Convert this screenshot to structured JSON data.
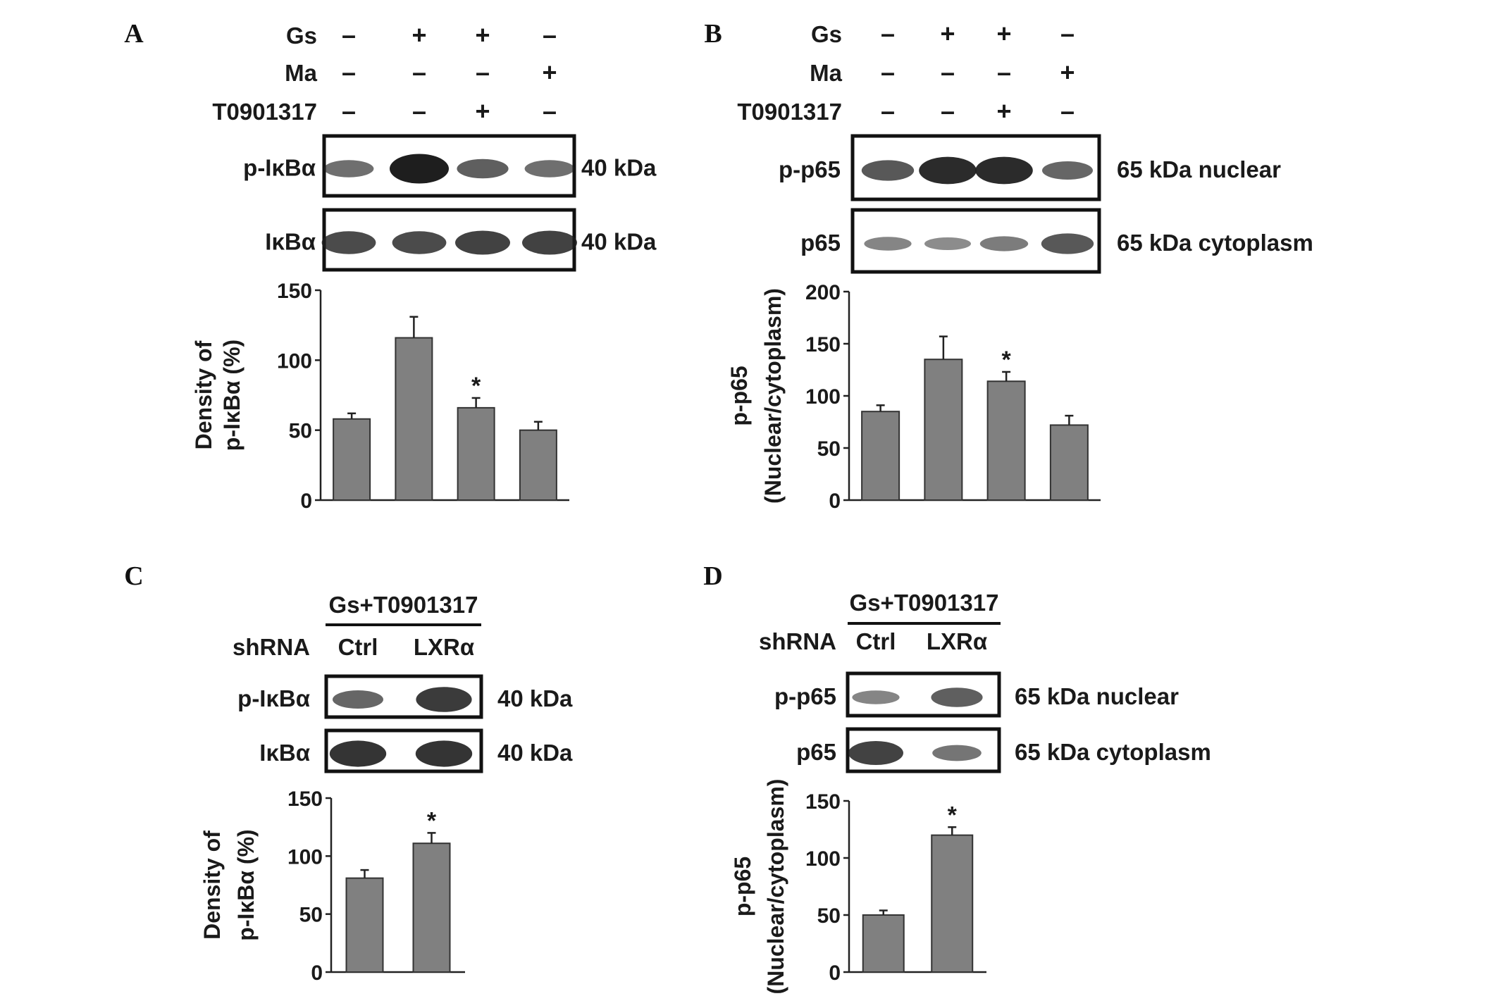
{
  "panels": [
    {
      "letter": "A",
      "treatments": [
        {
          "name": "Gs",
          "signs": [
            "-",
            "+",
            "+",
            "-"
          ]
        },
        {
          "name": "Ma",
          "signs": [
            "-",
            "-",
            "-",
            "+"
          ]
        },
        {
          "name": "T0901317",
          "signs": [
            "-",
            "-",
            "+",
            "-"
          ]
        }
      ],
      "blots": [
        {
          "label": "p-IκBα",
          "size": "40 kDa",
          "bands": [
            0.45,
            1.0,
            0.55,
            0.45
          ]
        },
        {
          "label": "IκBα",
          "size": "40 kDa",
          "bands": [
            0.7,
            0.7,
            0.75,
            0.75
          ]
        }
      ]
    },
    {
      "letter": "B",
      "treatments": [
        {
          "name": "Gs",
          "signs": [
            "-",
            "+",
            "+",
            "-"
          ]
        },
        {
          "name": "Ma",
          "signs": [
            "-",
            "-",
            "-",
            "+"
          ]
        },
        {
          "name": "T0901317",
          "signs": [
            "-",
            "-",
            "+",
            "-"
          ]
        }
      ],
      "blots": [
        {
          "label": "p-p65",
          "size": "65 kDa nuclear",
          "bands": [
            0.6,
            0.9,
            0.9,
            0.5
          ]
        },
        {
          "label": "p65",
          "size": "65 kDa cytoplasm",
          "bands": [
            0.3,
            0.25,
            0.35,
            0.6
          ]
        }
      ]
    },
    {
      "letter": "C",
      "condition": "Gs+T0901317",
      "shrna_label": "shRNA",
      "groups": [
        "Ctrl",
        "LXRα"
      ],
      "blots": [
        {
          "label": "p-IκBα",
          "size": "40 kDa",
          "bands": [
            0.5,
            0.8
          ]
        },
        {
          "label": "IκBα",
          "size": "40 kDa",
          "bands": [
            0.85,
            0.85
          ]
        }
      ]
    },
    {
      "letter": "D",
      "condition": "Gs+T0901317",
      "shrna_label": "shRNA",
      "groups": [
        "Ctrl",
        "LXRα"
      ],
      "blots": [
        {
          "label": "p-p65",
          "size": "65 kDa nuclear",
          "bands": [
            0.3,
            0.55
          ]
        },
        {
          "label": "p65",
          "size": "65 kDa cytoplasm",
          "bands": [
            0.75,
            0.4
          ]
        }
      ]
    }
  ],
  "chart_data": [
    {
      "type": "bar",
      "panel": "A",
      "ylabel": [
        "Density of",
        "p-IκBα (%)"
      ],
      "ylim": [
        0,
        150
      ],
      "yticks": [
        0,
        50,
        100,
        150
      ],
      "values": [
        58,
        116,
        66,
        50
      ],
      "errors": [
        4,
        15,
        7,
        6
      ],
      "significance": [
        "",
        "",
        "*",
        ""
      ]
    },
    {
      "type": "bar",
      "panel": "B",
      "ylabel": [
        "p-p65",
        "(Nuclear/cytoplasm)"
      ],
      "ylim": [
        0,
        200
      ],
      "yticks": [
        0,
        50,
        100,
        150,
        200
      ],
      "values": [
        85,
        135,
        114,
        72
      ],
      "errors": [
        6,
        22,
        9,
        9
      ],
      "significance": [
        "",
        "",
        "*",
        ""
      ]
    },
    {
      "type": "bar",
      "panel": "C",
      "ylabel": [
        "Density of",
        "p-IκBα (%)"
      ],
      "ylim": [
        0,
        150
      ],
      "yticks": [
        0,
        50,
        100,
        150
      ],
      "categories": [
        "Ctrl",
        "LXRα"
      ],
      "values": [
        81,
        111
      ],
      "errors": [
        7,
        9
      ],
      "significance": [
        "",
        "*"
      ]
    },
    {
      "type": "bar",
      "panel": "D",
      "ylabel": [
        "p-p65",
        "(Nuclear/cytoplasm)"
      ],
      "ylim": [
        0,
        150
      ],
      "yticks": [
        0,
        50,
        100,
        150
      ],
      "categories": [
        "Ctrl",
        "LXRα"
      ],
      "values": [
        50,
        120
      ],
      "errors": [
        4,
        7
      ],
      "significance": [
        "",
        "*"
      ]
    }
  ]
}
